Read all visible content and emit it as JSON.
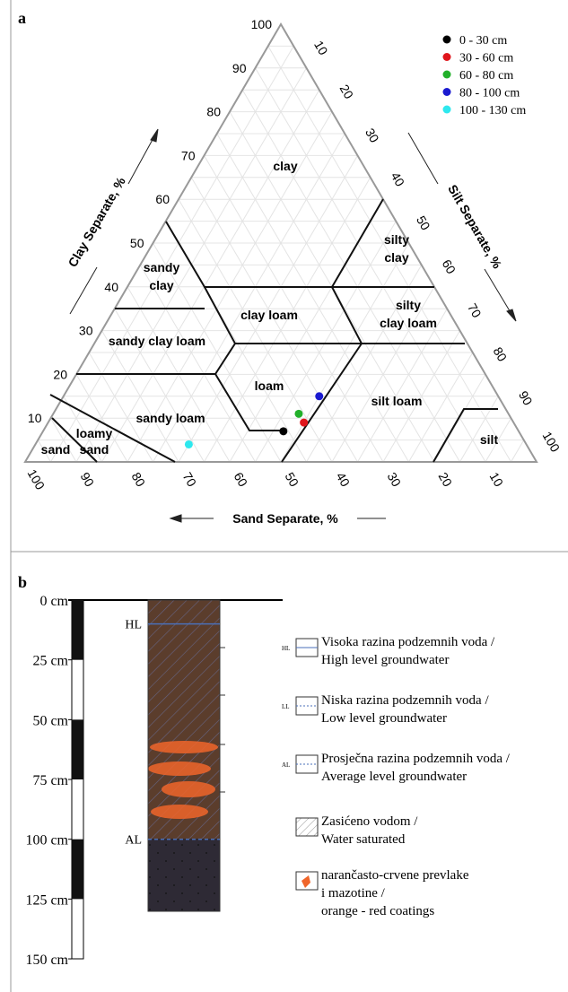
{
  "panel_a": {
    "label": "a",
    "clay_axis": {
      "title": "Clay Separate, %",
      "ticks": [
        10,
        20,
        30,
        40,
        50,
        60,
        70,
        80,
        90,
        100
      ]
    },
    "silt_axis": {
      "title": "Silt Separate, %",
      "ticks": [
        10,
        20,
        30,
        40,
        50,
        60,
        70,
        80,
        90,
        100
      ]
    },
    "sand_axis": {
      "title": "Sand Separate, %",
      "ticks": [
        100,
        90,
        80,
        70,
        60,
        50,
        40,
        30,
        20,
        10
      ]
    },
    "regions": [
      [
        "clay"
      ],
      [
        "silty",
        "clay"
      ],
      [
        "sandy",
        "clay"
      ],
      [
        "clay loam"
      ],
      [
        "silty",
        "clay loam"
      ],
      [
        "sandy clay loam"
      ],
      [
        "loam"
      ],
      [
        "silt loam"
      ],
      [
        "sandy loam"
      ],
      [
        "loamy",
        "sand"
      ],
      [
        "sand"
      ],
      [
        "silt"
      ]
    ],
    "points": [
      {
        "label": "0 - 30 cm",
        "color": "#000000",
        "clay": 7,
        "sand": 46,
        "silt": 47
      },
      {
        "label": "30 - 60 cm",
        "color": "#e0161c",
        "clay": 9,
        "sand": 41,
        "silt": 50
      },
      {
        "label": "60 - 80 cm",
        "color": "#22b02a",
        "clay": 11,
        "sand": 41,
        "silt": 48
      },
      {
        "label": "80 - 100 cm",
        "color": "#1a1ad0",
        "clay": 15,
        "sand": 35,
        "silt": 50
      },
      {
        "label": "100 - 130 cm",
        "color": "#2ee8ee",
        "clay": 4,
        "sand": 66,
        "silt": 30
      }
    ]
  },
  "panel_b": {
    "label": "b",
    "depth_ticks": [
      {
        "value": 0,
        "label": "0 cm"
      },
      {
        "value": 25,
        "label": "25 cm"
      },
      {
        "value": 50,
        "label": "50 cm"
      },
      {
        "value": 75,
        "label": "75 cm"
      },
      {
        "value": 100,
        "label": "100 cm"
      },
      {
        "value": 125,
        "label": "125 cm"
      },
      {
        "value": 150,
        "label": "150 cm"
      }
    ],
    "levels": [
      {
        "label": "HL",
        "depth": 10
      },
      {
        "label": "AL",
        "depth": 100
      }
    ],
    "legend": [
      {
        "icon": "HL",
        "lines": [
          "Visoka razina podzemnih voda /",
          "High level groundwater"
        ]
      },
      {
        "icon": "LL",
        "lines": [
          "Niska razina podzemnih voda /",
          "Low level groundwater"
        ]
      },
      {
        "icon": "AL",
        "lines": [
          "Prosječna razina podzemnih voda /",
          "Average level groundwater"
        ]
      },
      {
        "lines": [
          "Zasićeno vodom /",
          "Water saturated"
        ]
      },
      {
        "lines": [
          "narančasto-crvene prevlake",
          " i mazotine /",
          "orange - red coatings"
        ]
      }
    ]
  }
}
